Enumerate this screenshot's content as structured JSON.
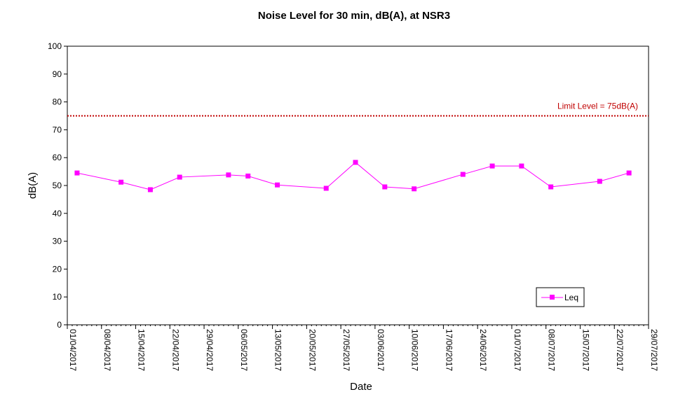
{
  "chart_data": {
    "type": "line",
    "title": "Noise Level for 30 min, dB(A), at NSR3",
    "xlabel": "Date",
    "ylabel": "dB(A)",
    "ylim": [
      0,
      100
    ],
    "yticks": [
      0,
      10,
      20,
      30,
      40,
      50,
      60,
      70,
      80,
      90,
      100
    ],
    "xlim": [
      "2017-04-01",
      "2017-07-29"
    ],
    "xticks": [
      "01/04/2017",
      "08/04/2017",
      "15/04/2017",
      "22/04/2017",
      "29/04/2017",
      "06/05/2017",
      "13/05/2017",
      "20/05/2017",
      "27/05/2017",
      "03/06/2017",
      "10/06/2017",
      "17/06/2017",
      "24/06/2017",
      "01/07/2017",
      "08/07/2017",
      "15/07/2017",
      "22/07/2017",
      "29/07/2017"
    ],
    "grid": false,
    "legend": {
      "position": "bottom-right"
    },
    "series": [
      {
        "name": "Leq",
        "color": "#ff00ff",
        "marker": "square",
        "x": [
          "2017-04-03",
          "2017-04-12",
          "2017-04-18",
          "2017-04-24",
          "2017-05-04",
          "2017-05-08",
          "2017-05-14",
          "2017-05-24",
          "2017-05-30",
          "2017-06-05",
          "2017-06-11",
          "2017-06-21",
          "2017-06-27",
          "2017-07-03",
          "2017-07-09",
          "2017-07-19",
          "2017-07-25"
        ],
        "y": [
          54.5,
          51.2,
          48.5,
          53.0,
          53.8,
          53.4,
          50.2,
          49.0,
          58.3,
          49.5,
          48.8,
          54.0,
          57.0,
          57.0,
          49.5,
          51.5,
          54.5
        ]
      }
    ],
    "reference_lines": [
      {
        "label": "Limit Level  = 75dB(A)",
        "y": 75,
        "color": "#c00000",
        "style": "dotted"
      }
    ]
  }
}
